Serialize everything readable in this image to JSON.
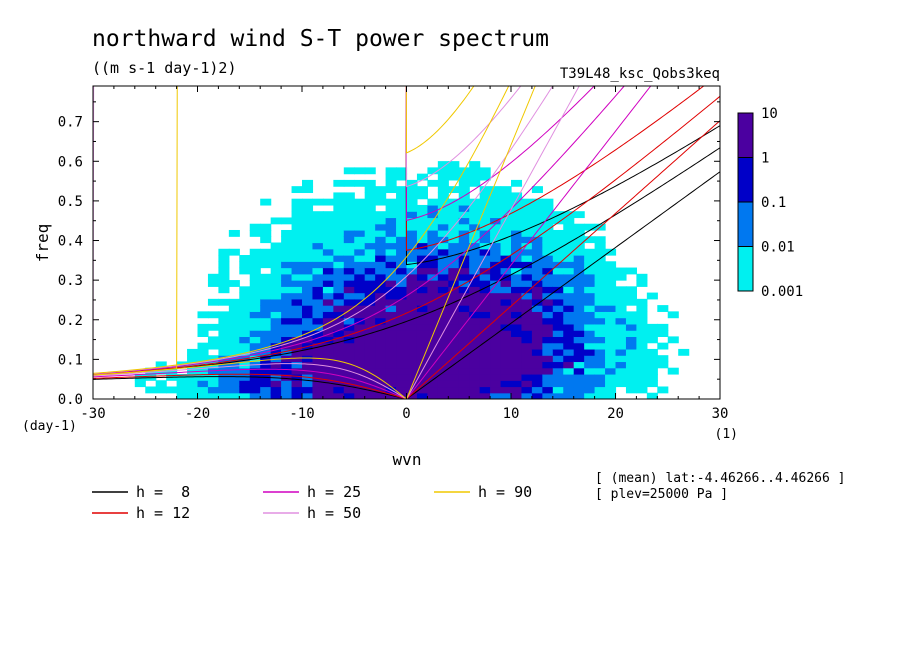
{
  "chart_data": {
    "type": "heatmap",
    "title": "northward wind S-T power spectrum",
    "subtitle": "((m s-1 day-1)2)",
    "run_label": "T39L48_ksc_Qobs3keq",
    "xlabel": "wvn",
    "ylabel": "freq",
    "x_unit": "(1)",
    "y_unit": "(day-1)",
    "xlim": [
      -30,
      30
    ],
    "ylim": [
      0,
      0.79
    ],
    "xticks": [
      -30,
      -20,
      -10,
      0,
      10,
      20,
      30
    ],
    "xtick_labels": [
      "-30",
      "-20",
      "-10",
      "0",
      "10",
      "20",
      "30"
    ],
    "yticks": [
      0,
      0.1,
      0.2,
      0.3,
      0.4,
      0.5,
      0.6,
      0.7
    ],
    "ytick_labels": [
      "0.0",
      "0.1",
      "0.2",
      "0.3",
      "0.4",
      "0.5",
      "0.6",
      "0.7"
    ],
    "colorbar": {
      "levels": [
        0.001,
        0.01,
        0.1,
        1,
        10
      ],
      "labels": [
        "0.001",
        "0.01",
        "0.1",
        "1",
        "10"
      ],
      "colors": [
        "#00f0f0",
        "#0078f0",
        "#0000c8",
        "#4b00a0"
      ]
    },
    "dispersion_curves": [
      {
        "name": "h =  8",
        "h": 8,
        "color": "#000000"
      },
      {
        "name": "h = 12",
        "h": 12,
        "color": "#e00000"
      },
      {
        "name": "h = 25",
        "h": 25,
        "color": "#d000c0"
      },
      {
        "name": "h = 50",
        "h": 50,
        "color": "#e090e0"
      },
      {
        "name": "h = 90",
        "h": 90,
        "color": "#f0c800"
      }
    ],
    "annotations": [
      "[ (mean) lat:-4.46266..4.46266 ]",
      "[ plev=25000 Pa ]"
    ]
  }
}
